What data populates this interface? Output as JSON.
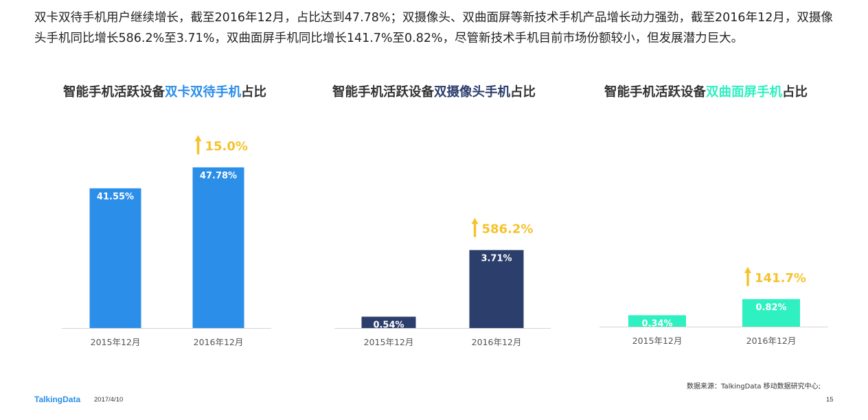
{
  "intro": "双卡双待手机用户继续增长，截至2016年12月，占比达到47.78%；双摄像头、双曲面屏等新技术手机产品增长动力强劲，截至2016年12月，双摄像头手机同比增长586.2%至3.71%，双曲面屏手机同比增长141.7%至0.82%，尽管新技术手机目前市场份额较小，但发展潜力巨大。",
  "chart_data": [
    {
      "type": "bar",
      "title": "智能手机活跃设备双卡双待手机占比",
      "title_parts": {
        "prefix": "智能手机活跃设备",
        "highlight": "双卡双待手机",
        "suffix": "占比"
      },
      "categories": [
        "2015年12月",
        "2016年12月"
      ],
      "values": [
        41.55,
        47.78
      ],
      "value_labels": [
        "41.55%",
        "47.78%"
      ],
      "growth_label": "15.0%",
      "ylim": [
        0,
        50
      ],
      "color": "#2b8ee8",
      "highlight_color": "#2b8ee8"
    },
    {
      "type": "bar",
      "title": "智能手机活跃设备双摄像头手机占比",
      "title_parts": {
        "prefix": "智能手机活跃设备",
        "highlight": "双摄像头手机",
        "suffix": "占比"
      },
      "categories": [
        "2015年12月",
        "2016年12月"
      ],
      "values": [
        0.54,
        3.71
      ],
      "value_labels": [
        "0.54%",
        "3.71%"
      ],
      "growth_label": "586.2%",
      "ylim": [
        0,
        8
      ],
      "color": "#2c3e6b",
      "highlight_color": "#2c3e6b"
    },
    {
      "type": "bar",
      "title": "智能手机活跃设备双曲面屏手机占比",
      "title_parts": {
        "prefix": "智能手机活跃设备",
        "highlight": "双曲面屏手机",
        "suffix": "占比"
      },
      "categories": [
        "2015年12月",
        "2016年12月"
      ],
      "values": [
        0.34,
        0.82
      ],
      "value_labels": [
        "0.34%",
        "0.82%"
      ],
      "growth_label": "141.7%",
      "ylim": [
        0,
        5
      ],
      "color": "#2ef0c0",
      "highlight_color": "#2ef0c0"
    }
  ],
  "arrow_color": "#f5c22b",
  "footer": {
    "logo": "TalkingData",
    "date": "2017/4/10",
    "source": "数据来源：TalkingData 移动数据研究中心;",
    "page": "15"
  }
}
